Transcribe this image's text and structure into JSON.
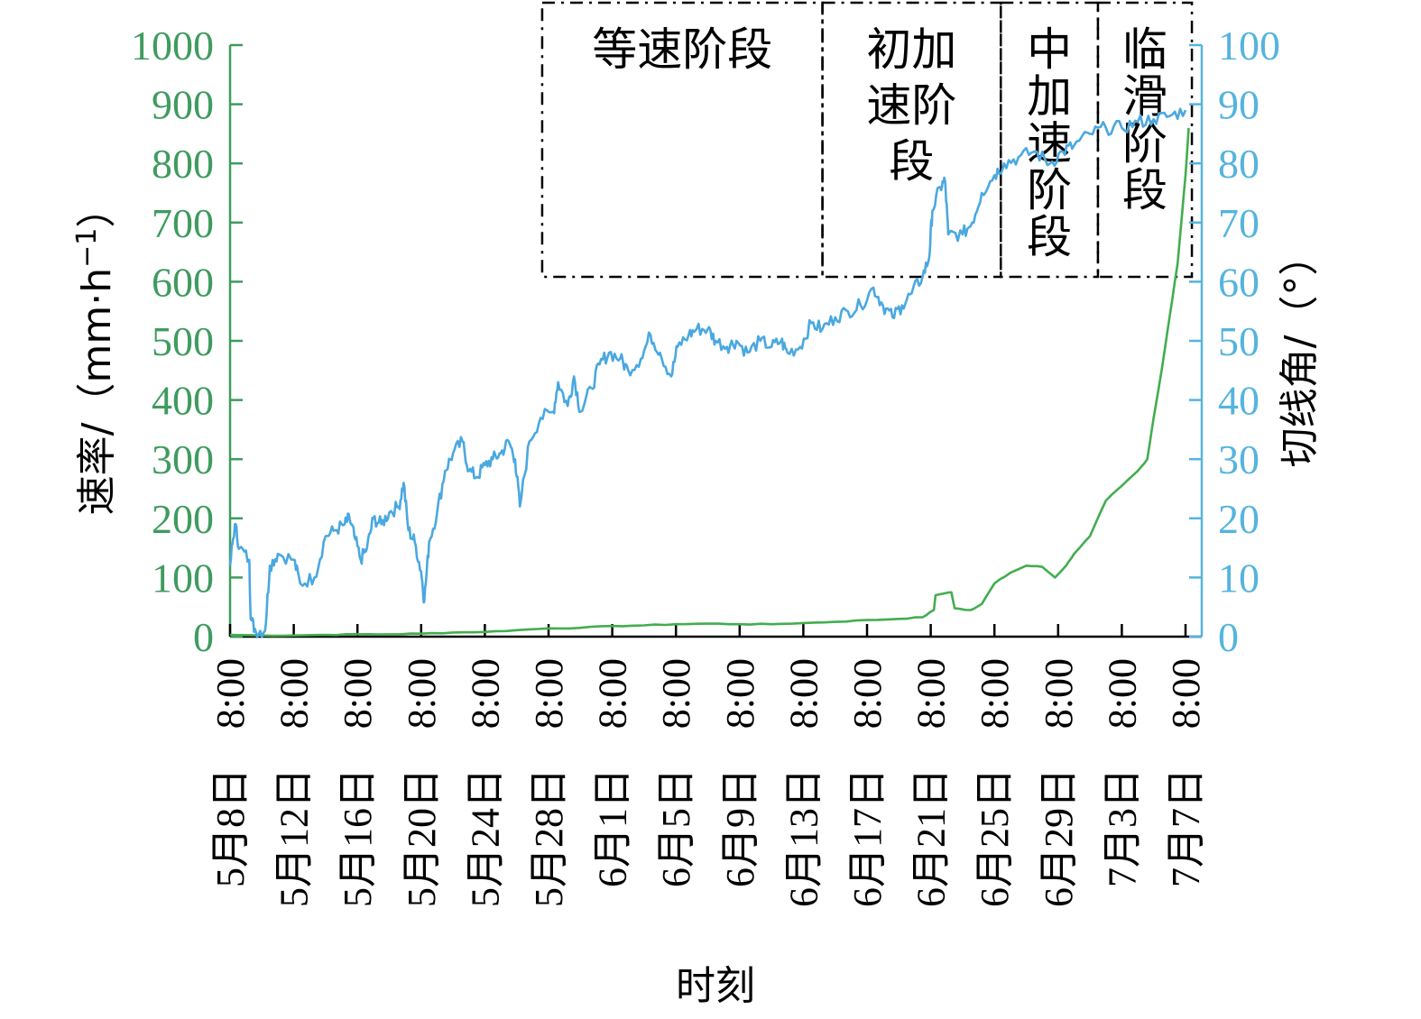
{
  "chart_data": {
    "type": "line",
    "xlabel": "时刻",
    "left_axis": {
      "label": "速率/（mm·h",
      "superscript": "−1",
      "label_end": "）",
      "range": [
        0,
        1000
      ],
      "ticks": [
        "0",
        "100",
        "200",
        "300",
        "400",
        "500",
        "600",
        "700",
        "800",
        "900",
        "1000"
      ],
      "color": "#3f9b5f"
    },
    "right_axis": {
      "label": "切线角/（°）",
      "range": [
        0,
        100
      ],
      "ticks": [
        "0",
        "10",
        "20",
        "30",
        "40",
        "50",
        "60",
        "70",
        "80",
        "90",
        "100"
      ],
      "color": "#55b4dd"
    },
    "x_ticks": [
      {
        "day": 0,
        "time": "8:00",
        "date": "5月8日"
      },
      {
        "day": 4,
        "time": "8:00",
        "date": "5月12日"
      },
      {
        "day": 8,
        "time": "8:00",
        "date": "5月16日"
      },
      {
        "day": 12,
        "time": "8:00",
        "date": "5月20日"
      },
      {
        "day": 16,
        "time": "8:00",
        "date": "5月24日"
      },
      {
        "day": 20,
        "time": "8:00",
        "date": "5月28日"
      },
      {
        "day": 24,
        "time": "8:00",
        "date": "6月1日"
      },
      {
        "day": 28,
        "time": "8:00",
        "date": "6月5日"
      },
      {
        "day": 32,
        "time": "8:00",
        "date": "6月9日"
      },
      {
        "day": 36,
        "time": "8:00",
        "date": "6月13日"
      },
      {
        "day": 40,
        "time": "8:00",
        "date": "6月17日"
      },
      {
        "day": 44,
        "time": "8:00",
        "date": "6月21日"
      },
      {
        "day": 48,
        "time": "8:00",
        "date": "6月25日"
      },
      {
        "day": 52,
        "time": "8:00",
        "date": "6月29日"
      },
      {
        "day": 56,
        "time": "8:00",
        "date": "7月3日"
      },
      {
        "day": 60,
        "time": "8:00",
        "date": "7月7日"
      }
    ],
    "xlim": [
      0,
      60
    ],
    "phases": [
      {
        "label": [
          "等速阶段"
        ],
        "x_start": 19.6,
        "x_end": 37.2
      },
      {
        "label": [
          "初加",
          "速阶",
          "段"
        ],
        "x_start": 37.2,
        "x_end": 48.4
      },
      {
        "label": [
          "中",
          "加",
          "速",
          "阶",
          "段"
        ],
        "x_start": 48.4,
        "x_end": 54.5
      },
      {
        "label": [
          "临",
          "滑",
          "阶",
          "段"
        ],
        "x_start": 54.5,
        "x_end": 60.4
      }
    ],
    "series": [
      {
        "axis": "left",
        "color": "#43ad4f",
        "points": [
          [
            0,
            3
          ],
          [
            2,
            2
          ],
          [
            4,
            2
          ],
          [
            6,
            3
          ],
          [
            8,
            4
          ],
          [
            10,
            4
          ],
          [
            12,
            5
          ],
          [
            14,
            7
          ],
          [
            16,
            8
          ],
          [
            18,
            11
          ],
          [
            20,
            14
          ],
          [
            22,
            15
          ],
          [
            24,
            18
          ],
          [
            26,
            19
          ],
          [
            28,
            21
          ],
          [
            30,
            22
          ],
          [
            32,
            21
          ],
          [
            34,
            21
          ],
          [
            36,
            23
          ],
          [
            38,
            25
          ],
          [
            40,
            28
          ],
          [
            42,
            30
          ],
          [
            43.5,
            33
          ],
          [
            44.2,
            45
          ],
          [
            44.3,
            70
          ],
          [
            45,
            74
          ],
          [
            45.3,
            75
          ],
          [
            45.5,
            48
          ],
          [
            46.5,
            45
          ],
          [
            47.2,
            55
          ],
          [
            48,
            90
          ],
          [
            49,
            108
          ],
          [
            50,
            120
          ],
          [
            51,
            118
          ],
          [
            51.8,
            100
          ],
          [
            52.5,
            120
          ],
          [
            53,
            140
          ],
          [
            54,
            170
          ],
          [
            55,
            230
          ],
          [
            56,
            255
          ],
          [
            57,
            280
          ],
          [
            57.6,
            300
          ],
          [
            58,
            370
          ],
          [
            58.5,
            450
          ],
          [
            59,
            540
          ],
          [
            59.5,
            630
          ],
          [
            59.8,
            720
          ],
          [
            60,
            780
          ],
          [
            60.2,
            860
          ]
        ]
      },
      {
        "axis": "right",
        "color": "#4aa8e0",
        "points": [
          [
            0,
            12
          ],
          [
            0.3,
            19
          ],
          [
            0.6,
            15
          ],
          [
            1.2,
            13
          ],
          [
            1.3,
            3
          ],
          [
            1.6,
            1
          ],
          [
            2.2,
            1
          ],
          [
            2.5,
            12
          ],
          [
            3,
            14
          ],
          [
            4,
            13
          ],
          [
            4.4,
            9
          ],
          [
            5.3,
            10
          ],
          [
            6,
            17
          ],
          [
            6.6,
            18
          ],
          [
            7.2,
            19
          ],
          [
            7.5,
            20
          ],
          [
            7.8,
            17
          ],
          [
            8.2,
            13
          ],
          [
            8.6,
            15
          ],
          [
            9,
            20
          ],
          [
            9.5,
            19
          ],
          [
            10,
            21
          ],
          [
            10.6,
            22
          ],
          [
            10.9,
            26
          ],
          [
            11.2,
            18
          ],
          [
            11.6,
            16
          ],
          [
            12,
            11
          ],
          [
            12.2,
            6
          ],
          [
            12.5,
            16
          ],
          [
            13,
            21
          ],
          [
            13.5,
            28
          ],
          [
            14,
            31
          ],
          [
            14.6,
            33
          ],
          [
            15,
            28
          ],
          [
            15.5,
            27
          ],
          [
            16,
            29
          ],
          [
            16.5,
            30
          ],
          [
            17,
            31
          ],
          [
            17.5,
            33
          ],
          [
            17.9,
            30
          ],
          [
            18.2,
            22
          ],
          [
            18.8,
            33
          ],
          [
            19.5,
            37
          ],
          [
            20.3,
            38
          ],
          [
            20.6,
            43
          ],
          [
            21.2,
            39
          ],
          [
            21.6,
            44
          ],
          [
            22,
            38
          ],
          [
            22.7,
            42
          ],
          [
            23.2,
            46
          ],
          [
            23.8,
            48
          ],
          [
            24.5,
            47
          ],
          [
            25,
            45
          ],
          [
            25.8,
            47
          ],
          [
            26.4,
            51
          ],
          [
            27,
            48
          ],
          [
            27.7,
            44
          ],
          [
            28.1,
            49
          ],
          [
            28.8,
            51
          ],
          [
            29.3,
            52
          ],
          [
            30,
            52
          ],
          [
            30.5,
            50
          ],
          [
            31.2,
            49
          ],
          [
            31.8,
            50
          ],
          [
            32.5,
            48
          ],
          [
            33.3,
            50
          ],
          [
            34,
            49
          ],
          [
            34.6,
            50
          ],
          [
            35,
            48
          ],
          [
            35.8,
            49
          ],
          [
            36.5,
            53
          ],
          [
            37.2,
            52
          ],
          [
            38,
            54
          ],
          [
            38.8,
            55
          ],
          [
            39.6,
            56
          ],
          [
            40.4,
            59
          ],
          [
            41,
            56
          ],
          [
            41.6,
            54
          ],
          [
            42.2,
            56
          ],
          [
            42.8,
            58
          ],
          [
            43.5,
            61
          ],
          [
            43.9,
            64
          ],
          [
            44.1,
            72
          ],
          [
            44.6,
            76
          ],
          [
            44.9,
            77
          ],
          [
            45.1,
            68
          ],
          [
            46,
            68
          ],
          [
            46.6,
            70
          ],
          [
            47.2,
            75
          ],
          [
            48,
            78
          ],
          [
            48.6,
            80
          ],
          [
            49.5,
            81
          ],
          [
            50.5,
            82
          ],
          [
            51.5,
            80
          ],
          [
            52.3,
            82
          ],
          [
            53,
            83
          ],
          [
            54,
            85
          ],
          [
            55,
            86
          ],
          [
            56,
            86
          ],
          [
            57,
            87
          ],
          [
            58,
            87.5
          ],
          [
            59,
            88
          ],
          [
            60,
            89
          ]
        ]
      }
    ]
  }
}
